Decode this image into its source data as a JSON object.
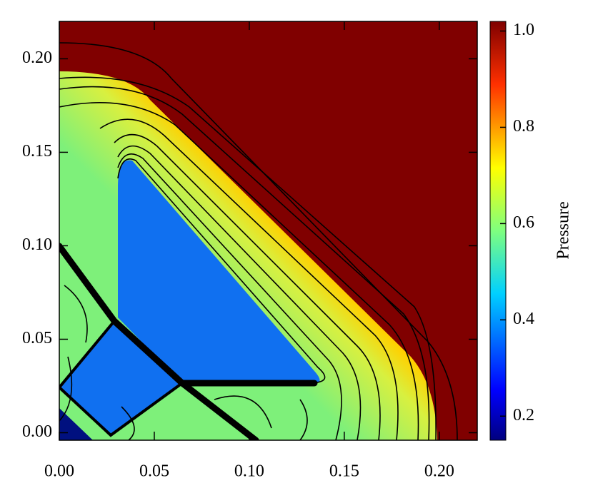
{
  "chart_data": {
    "type": "contour",
    "xlim": [
      0,
      0.22
    ],
    "ylim": [
      -0.004,
      0.22
    ],
    "xticks": [
      {
        "value": 0,
        "label": "0.00"
      },
      0.05,
      {
        "value": 0.1,
        "label": "0.10"
      },
      0.15,
      {
        "value": 0.2,
        "label": "0.20"
      }
    ],
    "yticks": [
      {
        "value": 0,
        "label": "0.00"
      },
      0.05,
      {
        "value": 0.1,
        "label": "0.10"
      },
      0.15,
      {
        "value": 0.2,
        "label": "0.20"
      }
    ],
    "colorbar": {
      "label": "Pressure",
      "lim": [
        0.15,
        1.02
      ],
      "ticks": [
        0.2,
        0.4,
        0.6,
        0.8,
        {
          "value": 1,
          "label": "1.0"
        }
      ]
    }
  }
}
